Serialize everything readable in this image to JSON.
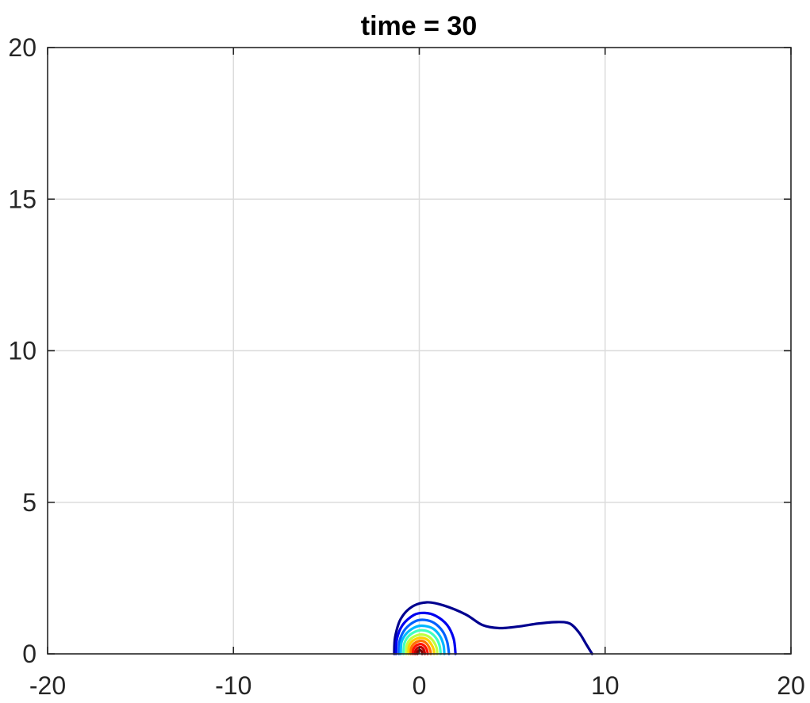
{
  "chart_data": {
    "type": "contour",
    "title": "time = 30",
    "xlabel": "",
    "ylabel": "",
    "xlim": [
      -20,
      20
    ],
    "ylim": [
      0,
      20
    ],
    "x_ticks": [
      -20,
      -10,
      0,
      10,
      20
    ],
    "y_ticks": [
      0,
      5,
      10,
      15,
      20
    ],
    "x_tick_labels": [
      "-20",
      "-10",
      "0",
      "10",
      "20"
    ],
    "y_tick_labels": [
      "0",
      "5",
      "10",
      "15",
      "20"
    ],
    "grid": true,
    "series": [
      {
        "name": "level-1",
        "color": "#00008f",
        "points": [
          [
            -1.35,
            0
          ],
          [
            -1.3,
            0.55
          ],
          [
            -1.0,
            1.15
          ],
          [
            -0.4,
            1.55
          ],
          [
            0.4,
            1.7
          ],
          [
            1.3,
            1.6
          ],
          [
            2.5,
            1.3
          ],
          [
            3.4,
            0.95
          ],
          [
            4.3,
            0.85
          ],
          [
            5.3,
            0.9
          ],
          [
            6.4,
            1.0
          ],
          [
            7.4,
            1.05
          ],
          [
            8.1,
            1.0
          ],
          [
            8.6,
            0.7
          ],
          [
            9.0,
            0.3
          ],
          [
            9.3,
            0
          ]
        ]
      },
      {
        "name": "level-2",
        "color": "#0000ee",
        "points": [
          [
            -1.25,
            0
          ],
          [
            -1.2,
            0.5
          ],
          [
            -0.9,
            0.95
          ],
          [
            -0.3,
            1.28
          ],
          [
            0.3,
            1.35
          ],
          [
            0.9,
            1.25
          ],
          [
            1.5,
            0.95
          ],
          [
            1.85,
            0.5
          ],
          [
            1.95,
            0
          ]
        ]
      },
      {
        "name": "level-3",
        "color": "#0060ff",
        "points": [
          [
            -1.1,
            0
          ],
          [
            -1.05,
            0.45
          ],
          [
            -0.75,
            0.82
          ],
          [
            -0.2,
            1.08
          ],
          [
            0.3,
            1.12
          ],
          [
            0.8,
            1.02
          ],
          [
            1.25,
            0.75
          ],
          [
            1.5,
            0.4
          ],
          [
            1.6,
            0
          ]
        ]
      },
      {
        "name": "level-4",
        "color": "#00b8ff",
        "points": [
          [
            -1.0,
            0
          ],
          [
            -0.95,
            0.4
          ],
          [
            -0.65,
            0.7
          ],
          [
            -0.15,
            0.9
          ],
          [
            0.3,
            0.92
          ],
          [
            0.75,
            0.83
          ],
          [
            1.1,
            0.6
          ],
          [
            1.3,
            0.3
          ],
          [
            1.35,
            0
          ]
        ]
      },
      {
        "name": "level-5",
        "color": "#40ffbf",
        "points": [
          [
            -0.85,
            0
          ],
          [
            -0.8,
            0.35
          ],
          [
            -0.55,
            0.6
          ],
          [
            -0.1,
            0.76
          ],
          [
            0.3,
            0.77
          ],
          [
            0.65,
            0.68
          ],
          [
            0.95,
            0.48
          ],
          [
            1.1,
            0.25
          ],
          [
            1.15,
            0
          ]
        ]
      },
      {
        "name": "level-6",
        "color": "#bfff40",
        "points": [
          [
            -0.7,
            0
          ],
          [
            -0.66,
            0.3
          ],
          [
            -0.45,
            0.5
          ],
          [
            -0.08,
            0.62
          ],
          [
            0.25,
            0.63
          ],
          [
            0.55,
            0.55
          ],
          [
            0.8,
            0.38
          ],
          [
            0.93,
            0.2
          ],
          [
            0.97,
            0
          ]
        ]
      },
      {
        "name": "level-7",
        "color": "#ffcf00",
        "points": [
          [
            -0.58,
            0
          ],
          [
            -0.55,
            0.25
          ],
          [
            -0.37,
            0.42
          ],
          [
            -0.05,
            0.52
          ],
          [
            0.22,
            0.52
          ],
          [
            0.47,
            0.45
          ],
          [
            0.66,
            0.3
          ],
          [
            0.77,
            0.15
          ],
          [
            0.8,
            0
          ]
        ]
      },
      {
        "name": "level-8",
        "color": "#ff7000",
        "points": [
          [
            -0.46,
            0
          ],
          [
            -0.43,
            0.2
          ],
          [
            -0.28,
            0.34
          ],
          [
            -0.03,
            0.42
          ],
          [
            0.2,
            0.42
          ],
          [
            0.38,
            0.35
          ],
          [
            0.52,
            0.23
          ],
          [
            0.6,
            0.1
          ],
          [
            0.62,
            0
          ]
        ]
      },
      {
        "name": "level-9",
        "color": "#ff1000",
        "points": [
          [
            -0.34,
            0
          ],
          [
            -0.32,
            0.15
          ],
          [
            -0.2,
            0.26
          ],
          [
            0.0,
            0.32
          ],
          [
            0.17,
            0.31
          ],
          [
            0.3,
            0.25
          ],
          [
            0.4,
            0.15
          ],
          [
            0.44,
            0.06
          ],
          [
            0.45,
            0
          ]
        ]
      },
      {
        "name": "level-10",
        "color": "#c00000",
        "points": [
          [
            -0.22,
            0
          ],
          [
            -0.2,
            0.1
          ],
          [
            -0.12,
            0.18
          ],
          [
            0.02,
            0.22
          ],
          [
            0.14,
            0.21
          ],
          [
            0.23,
            0.15
          ],
          [
            0.28,
            0.07
          ],
          [
            0.3,
            0
          ]
        ]
      },
      {
        "name": "level-11",
        "color": "#800000",
        "points": [
          [
            -0.1,
            0
          ],
          [
            -0.09,
            0.06
          ],
          [
            -0.03,
            0.11
          ],
          [
            0.05,
            0.12
          ],
          [
            0.11,
            0.1
          ],
          [
            0.15,
            0.05
          ],
          [
            0.16,
            0
          ]
        ]
      }
    ]
  }
}
